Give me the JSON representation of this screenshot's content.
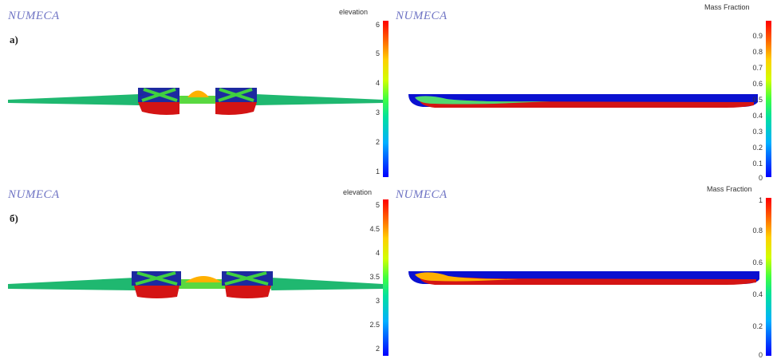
{
  "panels": [
    {
      "logo": "NUMECA",
      "label": "a)",
      "colorbar_title": "elevation",
      "ticks": [
        "6",
        "5",
        "4",
        "3",
        "2",
        "1"
      ]
    },
    {
      "logo": "NUMECA",
      "label": "",
      "colorbar_title": "Mass Fraction",
      "ticks": [
        "0.9",
        "0.8",
        "0.7",
        "0.6",
        "0.5",
        "0.4",
        "0.3",
        "0.2",
        "0.1",
        "0"
      ]
    },
    {
      "logo": "NUMECA",
      "label": "б)",
      "colorbar_title": "elevation",
      "ticks": [
        "5",
        "4.5",
        "4",
        "3.5",
        "3",
        "2.5",
        "2"
      ]
    },
    {
      "logo": "NUMECA",
      "label": "",
      "colorbar_title": "Mass Fraction",
      "ticks": [
        "1",
        "0.8",
        "0.6",
        "0.4",
        "0.2",
        "0"
      ]
    }
  ],
  "colors": {
    "logo": "#6f74c4",
    "low": "#0000ff",
    "mid": "#40ff40",
    "high": "#ff0000"
  }
}
